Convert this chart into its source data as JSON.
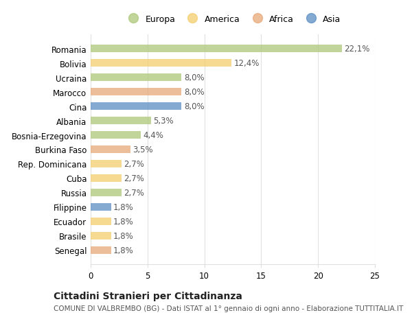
{
  "categories": [
    "Romania",
    "Bolivia",
    "Ucraina",
    "Marocco",
    "Cina",
    "Albania",
    "Bosnia-Erzegovina",
    "Burkina Faso",
    "Rep. Dominicana",
    "Cuba",
    "Russia",
    "Filippine",
    "Ecuador",
    "Brasile",
    "Senegal"
  ],
  "values": [
    22.1,
    12.4,
    8.0,
    8.0,
    8.0,
    5.3,
    4.4,
    3.5,
    2.7,
    2.7,
    2.7,
    1.8,
    1.8,
    1.8,
    1.8
  ],
  "labels": [
    "22,1%",
    "12,4%",
    "8,0%",
    "8,0%",
    "8,0%",
    "5,3%",
    "4,4%",
    "3,5%",
    "2,7%",
    "2,7%",
    "2,7%",
    "1,8%",
    "1,8%",
    "1,8%",
    "1,8%"
  ],
  "bar_colors": {
    "Romania": "#adc87a",
    "Bolivia": "#f5ce6e",
    "Ucraina": "#adc87a",
    "Marocco": "#e8a878",
    "Cina": "#5b8ec4",
    "Albania": "#adc87a",
    "Bosnia-Erzegovina": "#adc87a",
    "Burkina Faso": "#e8a878",
    "Rep. Dominicana": "#f5ce6e",
    "Cuba": "#f5ce6e",
    "Russia": "#adc87a",
    "Filippine": "#5b8ec4",
    "Ecuador": "#f5ce6e",
    "Brasile": "#f5ce6e",
    "Senegal": "#e8a878"
  },
  "legend": [
    {
      "label": "Europa",
      "color": "#adc87a"
    },
    {
      "label": "America",
      "color": "#f5ce6e"
    },
    {
      "label": "Africa",
      "color": "#e8a878"
    },
    {
      "label": "Asia",
      "color": "#5b8ec4"
    }
  ],
  "title": "Cittadini Stranieri per Cittadinanza",
  "subtitle": "COMUNE DI VALBREMBO (BG) - Dati ISTAT al 1° gennaio di ogni anno - Elaborazione TUTTITALIA.IT",
  "xlim": [
    0,
    25
  ],
  "xticks": [
    0,
    5,
    10,
    15,
    20,
    25
  ],
  "background_color": "#ffffff",
  "grid_color": "#e0e0e0",
  "bar_alpha": 0.75,
  "label_fontsize": 8.5,
  "tick_fontsize": 8.5,
  "title_fontsize": 10,
  "subtitle_fontsize": 7.5
}
